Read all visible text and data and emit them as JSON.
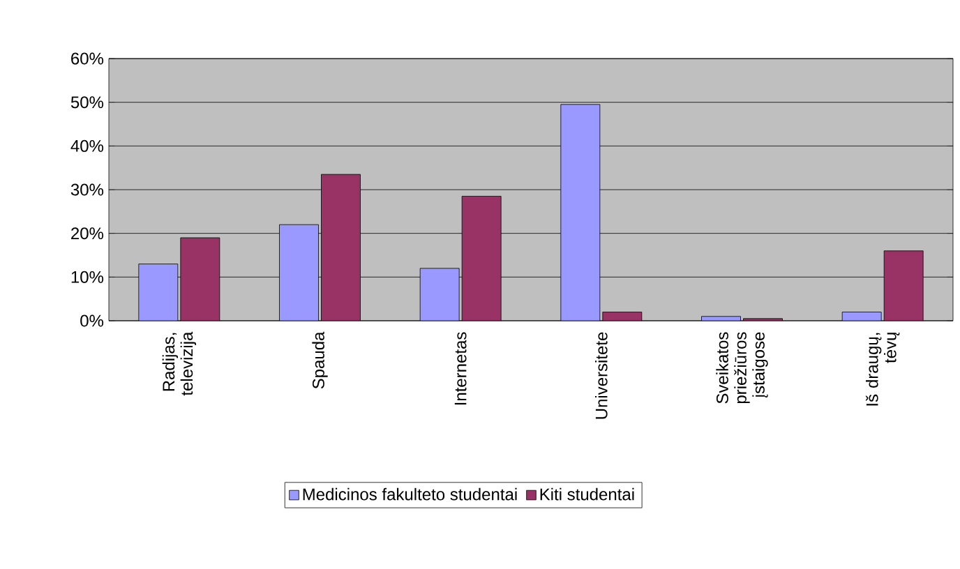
{
  "chart_data": {
    "type": "bar",
    "categories": [
      "Radijas, televizija",
      "Spauda",
      "Internetas",
      "Universitete",
      "Sveikatos priežiūros įstaigose",
      "Iš draugų, tėvų"
    ],
    "series": [
      {
        "name": "Medicinos fakulteto studentai",
        "color": "#9999ff",
        "values": [
          13,
          22,
          12,
          49.5,
          1,
          2
        ]
      },
      {
        "name": "Kiti studentai",
        "color": "#993366",
        "values": [
          19,
          33.5,
          28.5,
          2,
          0.5,
          16
        ]
      }
    ],
    "ylim": [
      0,
      60
    ],
    "yticks": [
      {
        "value": 0,
        "label": "0%"
      },
      {
        "value": 10,
        "label": "10%"
      },
      {
        "value": 20,
        "label": "20%"
      },
      {
        "value": 30,
        "label": "30%"
      },
      {
        "value": 40,
        "label": "40%"
      },
      {
        "value": 50,
        "label": "50%"
      },
      {
        "value": 60,
        "label": "60%"
      }
    ],
    "grid": "y",
    "legend": "bottom"
  }
}
